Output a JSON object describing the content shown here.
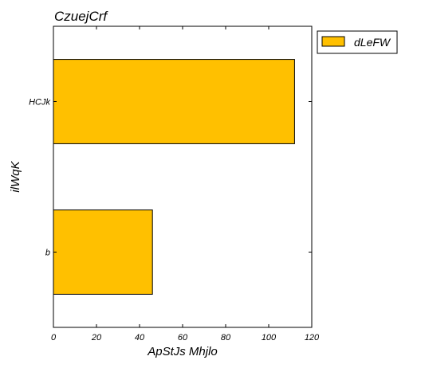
{
  "chart_data": {
    "type": "bar",
    "orientation": "horizontal",
    "title": "CzuejCrf",
    "xlabel": "ApStJs Mhjlo",
    "ylabel": "ilWqK",
    "categories": [
      "HCJk",
      "b"
    ],
    "series": [
      {
        "name": "dLeFW",
        "values": [
          112,
          46
        ],
        "color": "#ffc000"
      }
    ],
    "xlim": [
      0,
      120
    ],
    "xticks": [
      0,
      20,
      40,
      60,
      80,
      100,
      120
    ],
    "grid": false,
    "legend_position": "upper-right-outside"
  }
}
